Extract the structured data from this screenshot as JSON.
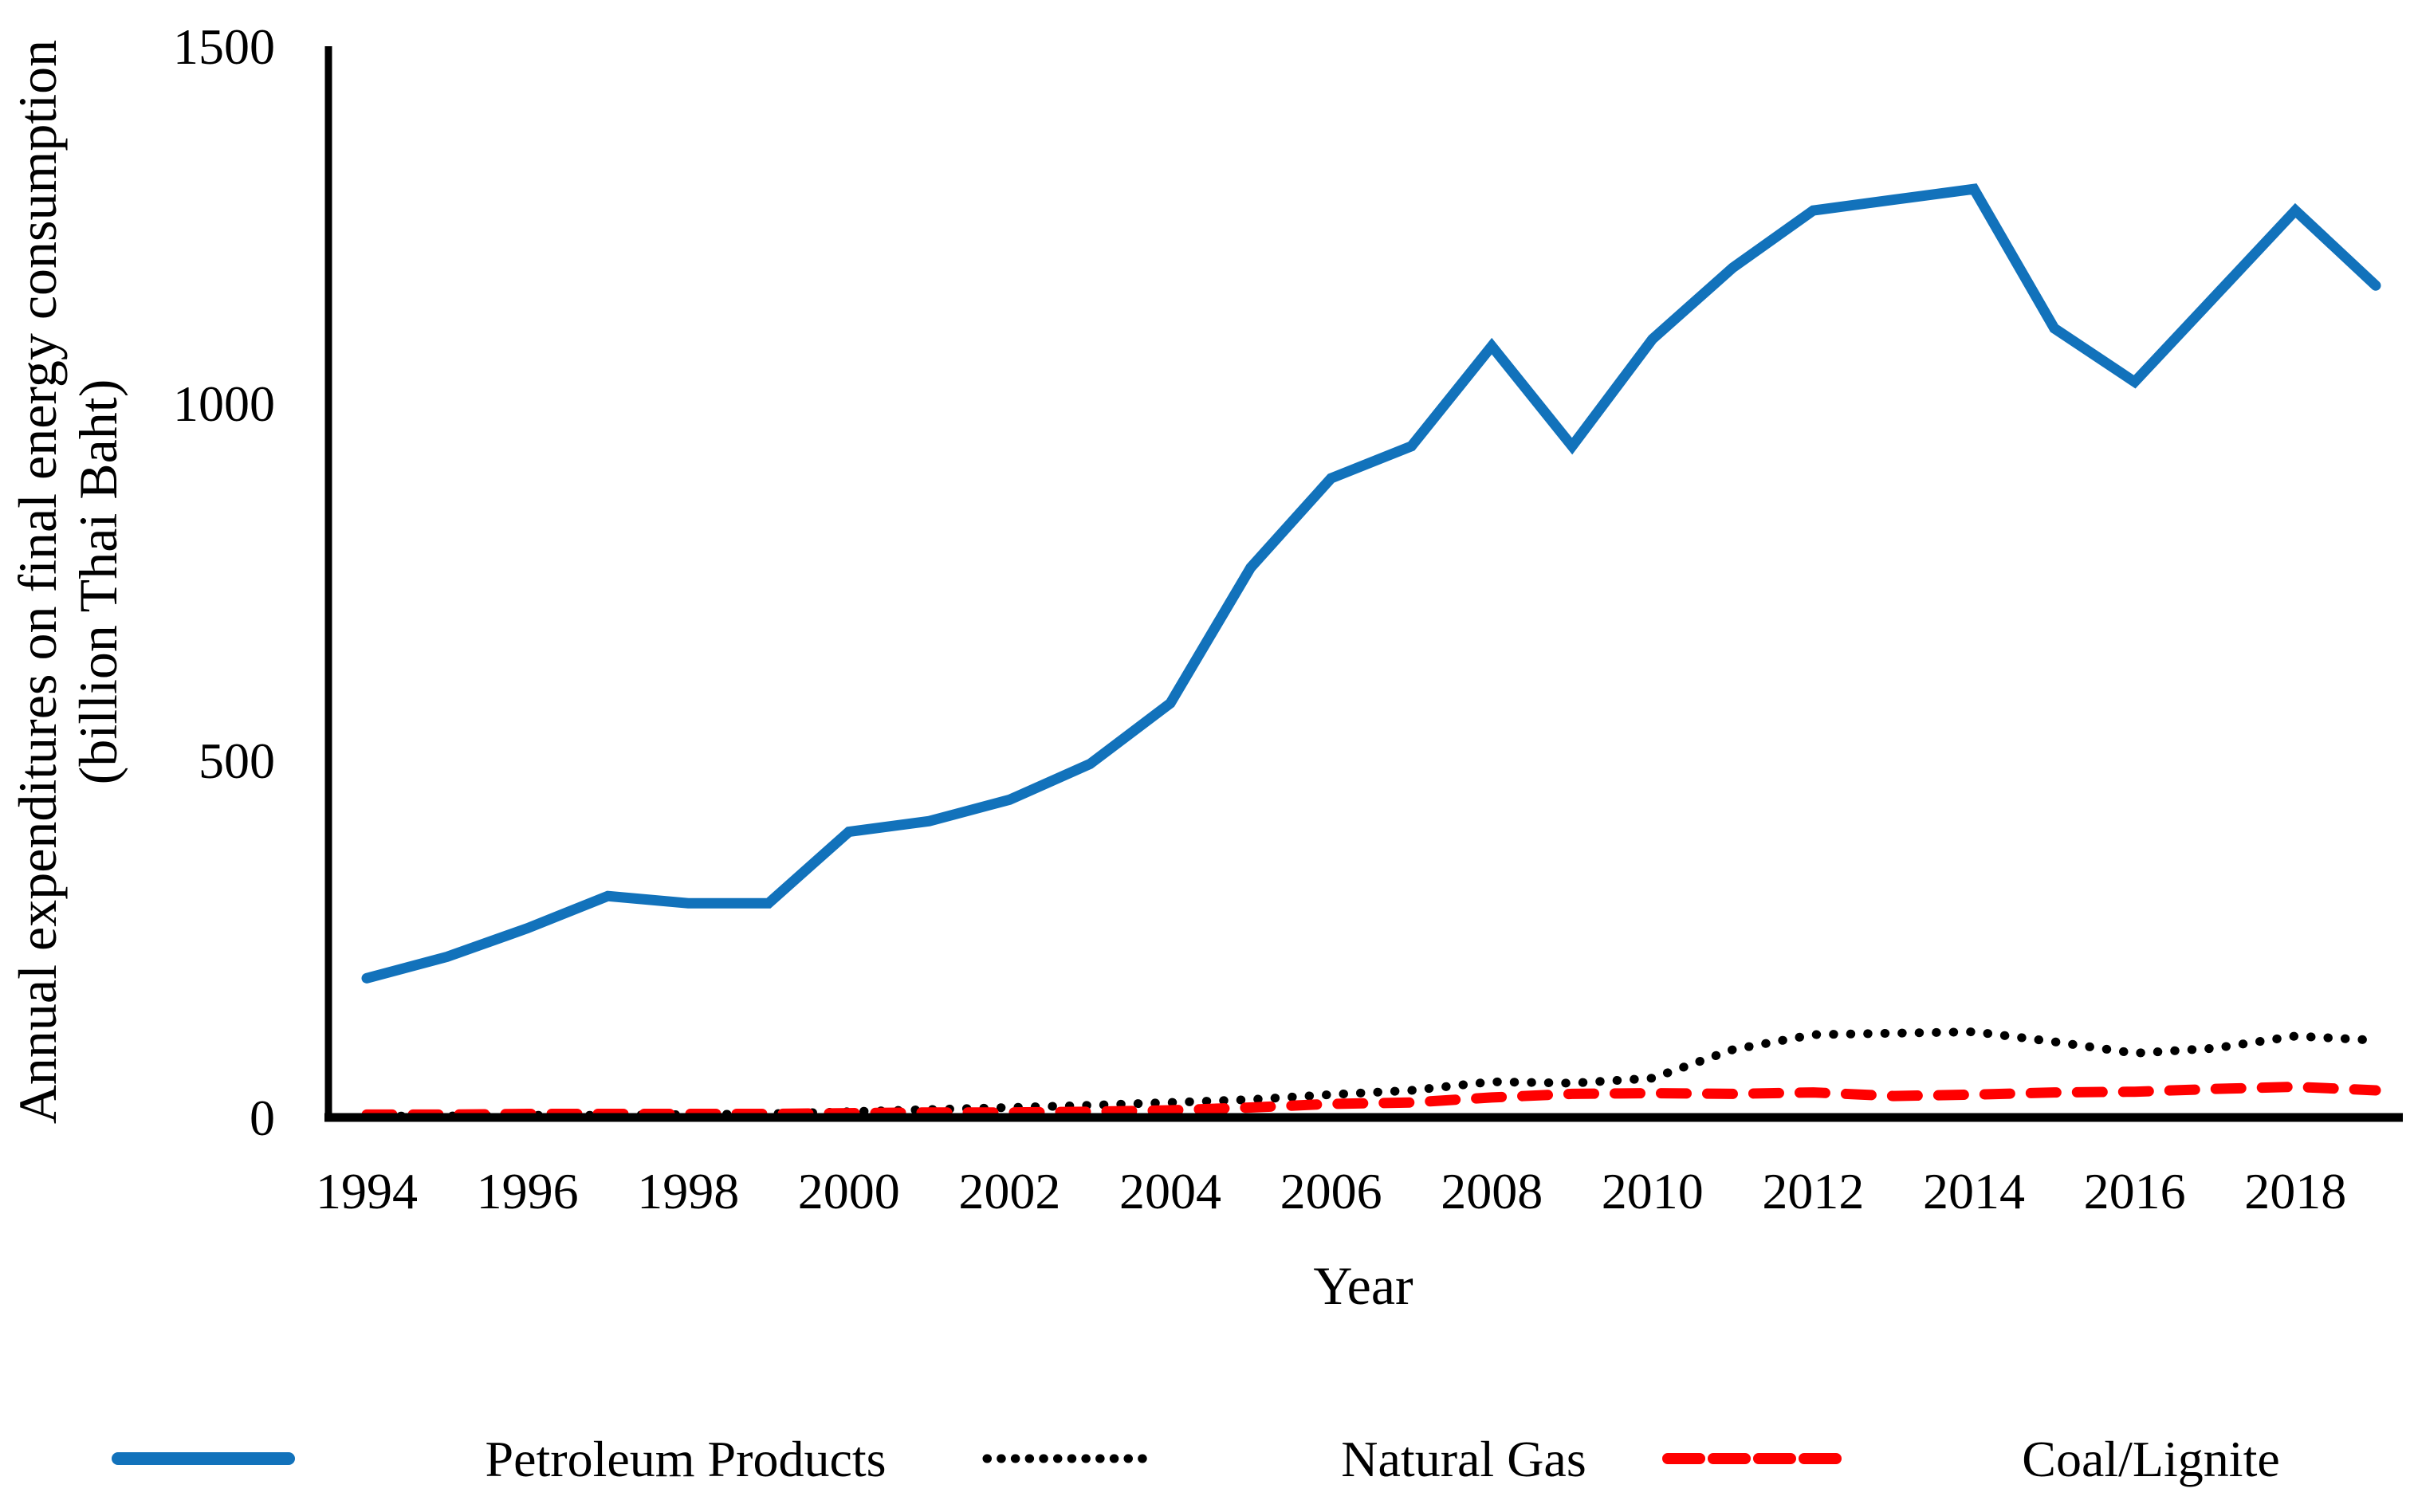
{
  "chart_data": {
    "type": "line",
    "xlabel": "Year",
    "ylabel_line1": "Annual expenditures on final energy consumption",
    "ylabel_line2": "(billion Thai Baht)",
    "x": [
      1994,
      1995,
      1996,
      1997,
      1998,
      1999,
      2000,
      2001,
      2002,
      2003,
      2004,
      2005,
      2006,
      2007,
      2008,
      2009,
      2010,
      2011,
      2012,
      2013,
      2014,
      2015,
      2016,
      2017,
      2018,
      2019
    ],
    "x_tick_labels": [
      "1994",
      "1996",
      "1998",
      "2000",
      "2002",
      "2004",
      "2006",
      "2008",
      "2010",
      "2012",
      "2014",
      "2016",
      "2018"
    ],
    "x_tick_years": [
      1994,
      1996,
      1998,
      2000,
      2002,
      2004,
      2006,
      2008,
      2010,
      2012,
      2014,
      2016,
      2018
    ],
    "y_ticks": [
      0,
      500,
      1000,
      1500
    ],
    "y_tick_labels": [
      "0",
      "500",
      "1000",
      "1500"
    ],
    "xlim": [
      1994,
      2019
    ],
    "ylim": [
      0,
      1500
    ],
    "grid": false,
    "legend_position": "bottom",
    "series": [
      {
        "name": "Petroleum Products",
        "style": "solid",
        "color": "#1272BB",
        "values": [
          195,
          225,
          265,
          310,
          300,
          300,
          400,
          415,
          445,
          495,
          580,
          770,
          895,
          940,
          1080,
          940,
          1090,
          1190,
          1270,
          1285,
          1300,
          1105,
          1030,
          1150,
          1270,
          1165
        ]
      },
      {
        "name": "Natural Gas",
        "style": "dotted",
        "color": "#000000",
        "values": [
          2,
          2,
          3,
          3,
          4,
          5,
          8,
          11,
          14,
          17,
          21,
          25,
          32,
          38,
          50,
          48,
          55,
          95,
          116,
          118,
          120,
          106,
          90,
          97,
          114,
          108
        ]
      },
      {
        "name": "Coal/Lignite",
        "style": "dashed",
        "color": "#FF0000",
        "values": [
          4,
          4,
          5,
          5,
          5,
          5,
          6,
          7,
          7,
          8,
          10,
          14,
          19,
          21,
          28,
          33,
          34,
          33,
          35,
          30,
          32,
          35,
          36,
          40,
          43,
          38
        ]
      }
    ]
  },
  "legend": {
    "items": [
      {
        "label": "Petroleum Products"
      },
      {
        "label": "Natural Gas"
      },
      {
        "label": "Coal/Lignite"
      }
    ]
  }
}
